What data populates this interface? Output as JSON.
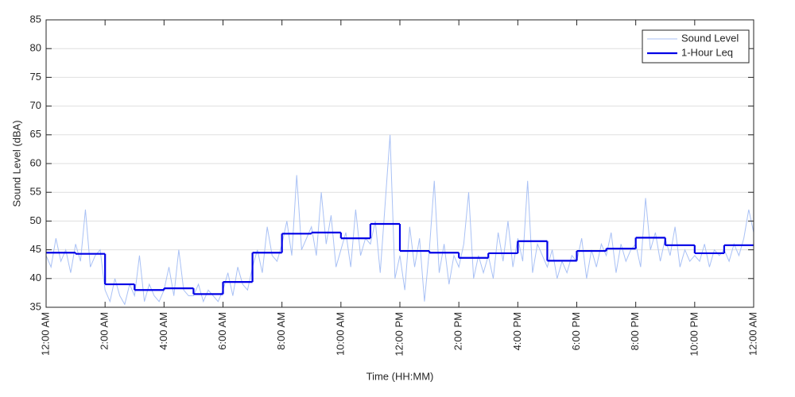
{
  "chart_data": {
    "type": "line",
    "xlabel": "Time (HH:MM)",
    "ylabel": "Sound Level (dBA)",
    "xlim": [
      0,
      1440
    ],
    "ylim": [
      35,
      85
    ],
    "xticks": [
      {
        "value": 0,
        "label": "12:00 AM"
      },
      {
        "value": 120,
        "label": "2:00 AM"
      },
      {
        "value": 240,
        "label": "4:00 AM"
      },
      {
        "value": 360,
        "label": "6:00 AM"
      },
      {
        "value": 480,
        "label": "8:00 AM"
      },
      {
        "value": 600,
        "label": "10:00 AM"
      },
      {
        "value": 720,
        "label": "12:00 PM"
      },
      {
        "value": 840,
        "label": "2:00 PM"
      },
      {
        "value": 960,
        "label": "4:00 PM"
      },
      {
        "value": 1080,
        "label": "6:00 PM"
      },
      {
        "value": 1200,
        "label": "8:00 PM"
      },
      {
        "value": 1320,
        "label": "10:00 PM"
      },
      {
        "value": 1440,
        "label": "12:00 AM"
      }
    ],
    "yticks": [
      35,
      40,
      45,
      50,
      55,
      60,
      65,
      70,
      75,
      80,
      85
    ],
    "grid": true,
    "legend": "upper-right",
    "series": [
      {
        "name": "Sound Level",
        "color": "#a9c1f5",
        "style": "line",
        "x": [
          0,
          10,
          20,
          30,
          40,
          50,
          60,
          70,
          80,
          90,
          100,
          110,
          120,
          130,
          140,
          150,
          160,
          170,
          180,
          190,
          200,
          210,
          220,
          230,
          240,
          250,
          260,
          270,
          280,
          290,
          300,
          310,
          320,
          330,
          340,
          350,
          360,
          370,
          380,
          390,
          400,
          410,
          420,
          430,
          440,
          450,
          460,
          470,
          480,
          490,
          500,
          510,
          520,
          530,
          540,
          550,
          560,
          570,
          580,
          590,
          600,
          610,
          620,
          630,
          640,
          650,
          660,
          670,
          680,
          690,
          700,
          710,
          720,
          730,
          740,
          750,
          760,
          770,
          780,
          790,
          800,
          810,
          820,
          830,
          840,
          850,
          860,
          870,
          880,
          890,
          900,
          910,
          920,
          930,
          940,
          950,
          960,
          970,
          980,
          990,
          1000,
          1010,
          1020,
          1030,
          1040,
          1050,
          1060,
          1070,
          1080,
          1090,
          1100,
          1110,
          1120,
          1130,
          1140,
          1150,
          1160,
          1170,
          1180,
          1190,
          1200,
          1210,
          1220,
          1230,
          1240,
          1250,
          1260,
          1270,
          1280,
          1290,
          1300,
          1310,
          1320,
          1330,
          1340,
          1350,
          1360,
          1370,
          1380,
          1390,
          1400,
          1410,
          1420,
          1430,
          1440
        ],
        "values": [
          44,
          42,
          47,
          43,
          45,
          41,
          46,
          43,
          52,
          42,
          44,
          45,
          38,
          36,
          40,
          37,
          35.5,
          39,
          37,
          44,
          36,
          39,
          37,
          36,
          38,
          42,
          37,
          45,
          38,
          37,
          37,
          39,
          36,
          38,
          37,
          36,
          38,
          41,
          37,
          42,
          39,
          38,
          42,
          45,
          41,
          49,
          44,
          43,
          46,
          50,
          44,
          58,
          45,
          47,
          49,
          44,
          55,
          46,
          51,
          42,
          45,
          48,
          42,
          52,
          44,
          47,
          46,
          50,
          41,
          53,
          65,
          40,
          44,
          38,
          49,
          42,
          47,
          36,
          45,
          57,
          41,
          46,
          39,
          44,
          42,
          46,
          55,
          40,
          44,
          41,
          44,
          40,
          48,
          43,
          50,
          42,
          47,
          43,
          57,
          41,
          46,
          44,
          42,
          45,
          40,
          43,
          41,
          44,
          43,
          47,
          40,
          45,
          42,
          46,
          44,
          48,
          41,
          46,
          43,
          45,
          46,
          42,
          54,
          45,
          48,
          43,
          47,
          44,
          49,
          42,
          45,
          43,
          44,
          43,
          46,
          42,
          45,
          44,
          45,
          43,
          46,
          44,
          47,
          52,
          48
        ]
      },
      {
        "name": "1-Hour Leq",
        "color": "#0000e6",
        "style": "step",
        "x": [
          0,
          60,
          120,
          180,
          240,
          300,
          360,
          420,
          480,
          540,
          600,
          660,
          720,
          780,
          840,
          900,
          960,
          1020,
          1080,
          1140,
          1200,
          1260,
          1320,
          1380
        ],
        "values": [
          44.5,
          44.3,
          39.0,
          38.0,
          38.3,
          37.3,
          39.4,
          44.5,
          47.8,
          48.0,
          47.0,
          49.5,
          44.8,
          44.5,
          43.6,
          44.4,
          46.5,
          43.1,
          44.8,
          45.2,
          47.1,
          45.8,
          44.4,
          45.8
        ]
      }
    ]
  }
}
